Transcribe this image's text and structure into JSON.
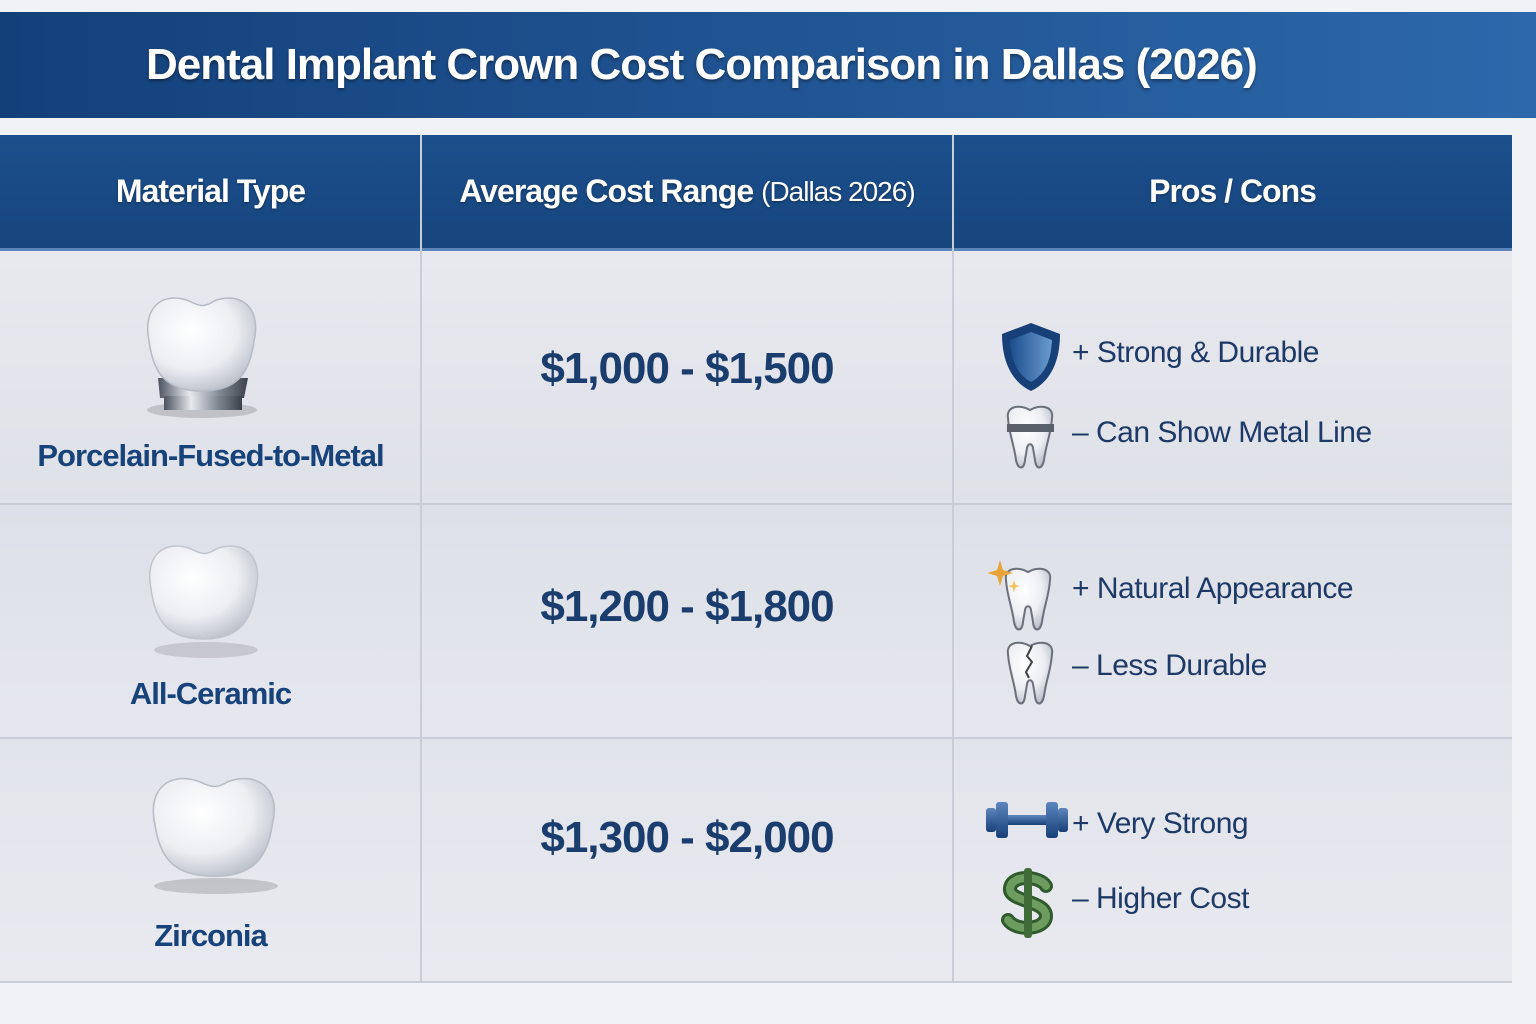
{
  "header": {
    "title": "Dental Implant Crown Cost Comparison in Dallas (2026)"
  },
  "table": {
    "headers": [
      "Material Type",
      {
        "main": "Average Cost Range",
        "note": "(Dallas 2026)"
      },
      "Pros / Cons"
    ],
    "rows": [
      {
        "material": "Porcelain-Fused-to-Metal",
        "cost": "$1,000 - $1,500",
        "pro": "+ Strong & Durable",
        "con": "– Can Show Metal Line"
      },
      {
        "material": "All-Ceramic",
        "cost": "$1,200 - $1,800",
        "pro": "+ Natural Appearance",
        "con": "– Less Durable"
      },
      {
        "material": "Zirconia",
        "cost": "$1,300 - $2,000",
        "pro": "+ Very Strong",
        "con": "– Higher Cost"
      }
    ]
  }
}
